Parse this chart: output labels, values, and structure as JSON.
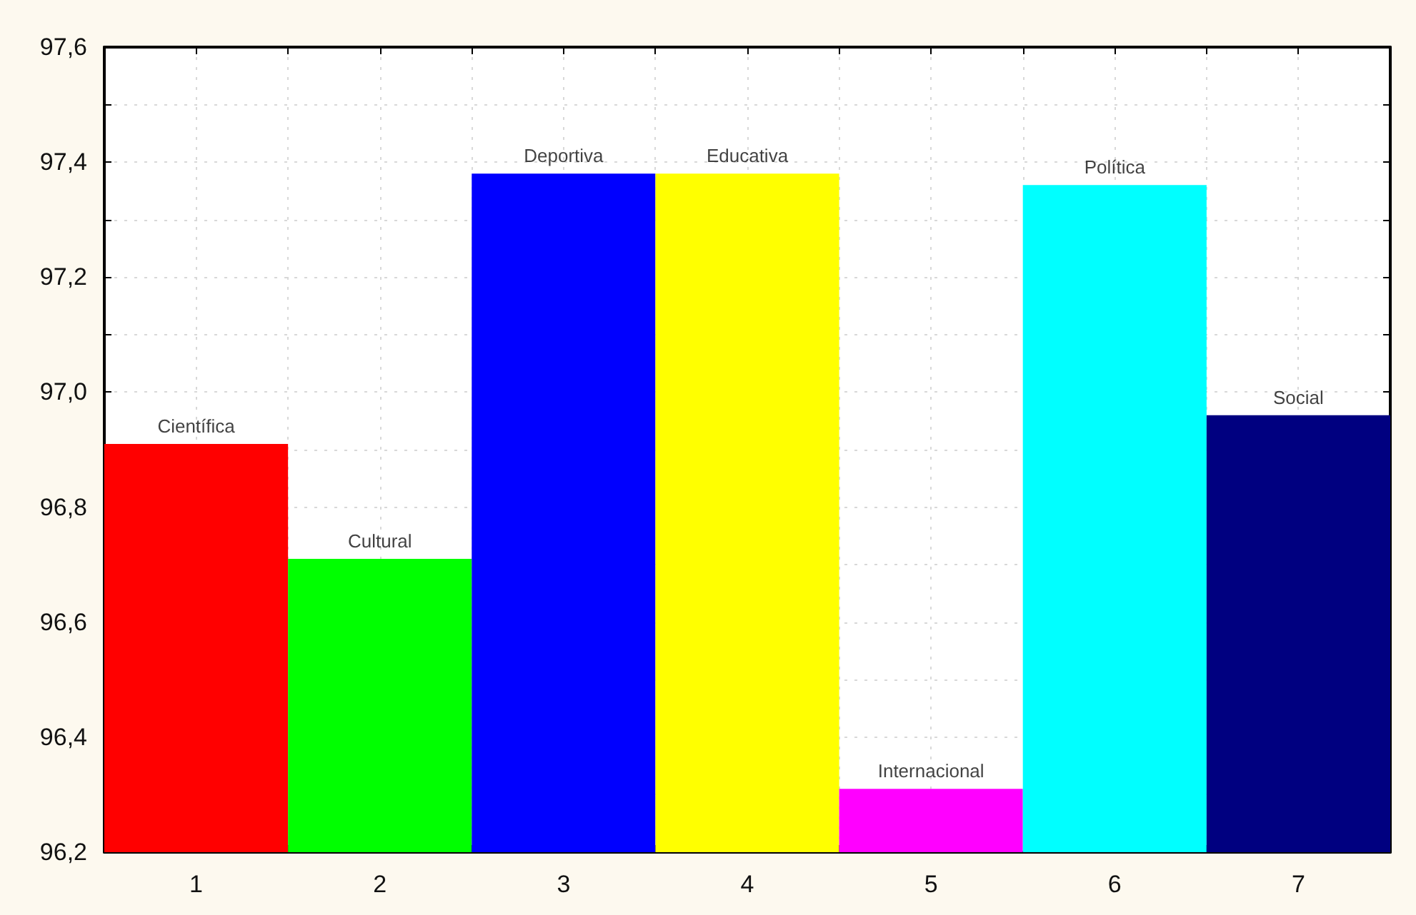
{
  "chart_data": {
    "type": "bar",
    "categories": [
      "1",
      "2",
      "3",
      "4",
      "5",
      "6",
      "7"
    ],
    "values": [
      96.91,
      96.71,
      97.38,
      97.38,
      96.31,
      97.36,
      96.96
    ],
    "colors": [
      "#ff0000",
      "#00ff00",
      "#0000ff",
      "#ffff00",
      "#ff00ff",
      "#00ffff",
      "#000080"
    ],
    "ylim": [
      96.2,
      97.6
    ],
    "yticks": [
      {
        "value": 96.2,
        "label": "96,2"
      },
      {
        "value": 96.4,
        "label": "96,4"
      },
      {
        "value": 96.6,
        "label": "96,6"
      },
      {
        "value": 96.8,
        "label": "96,8"
      },
      {
        "value": 97.0,
        "label": "97,0"
      },
      {
        "value": 97.2,
        "label": "97,2"
      },
      {
        "value": 97.4,
        "label": "97,4"
      },
      {
        "value": 97.6,
        "label": "97,6"
      }
    ],
    "grid": true,
    "annotations": [
      {
        "text": "Científica",
        "x": "1",
        "y": 96.91
      },
      {
        "text": "Cultural",
        "x": "2",
        "y": 96.71
      },
      {
        "text": "Deportiva",
        "x": "3",
        "y": 97.38
      },
      {
        "text": "Educativa",
        "x": "4",
        "y": 97.38
      },
      {
        "text": "Internacional",
        "x": "5",
        "y": 96.31
      },
      {
        "text": "Política",
        "x": "6",
        "y": 97.36
      },
      {
        "text": "Social",
        "x": "7",
        "y": 96.96
      }
    ]
  }
}
